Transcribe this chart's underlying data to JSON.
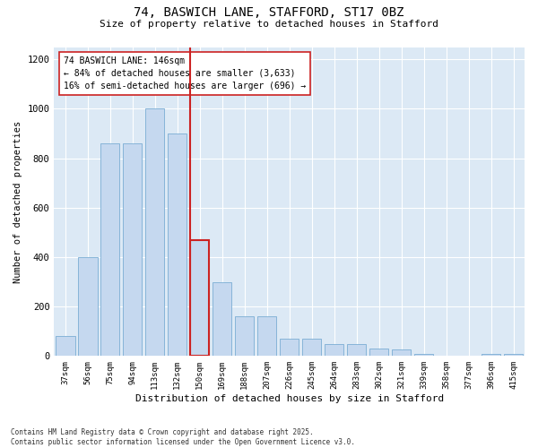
{
  "title_line1": "74, BASWICH LANE, STAFFORD, ST17 0BZ",
  "title_line2": "Size of property relative to detached houses in Stafford",
  "xlabel": "Distribution of detached houses by size in Stafford",
  "ylabel": "Number of detached properties",
  "categories": [
    "37sqm",
    "56sqm",
    "75sqm",
    "94sqm",
    "113sqm",
    "132sqm",
    "150sqm",
    "169sqm",
    "188sqm",
    "207sqm",
    "226sqm",
    "245sqm",
    "264sqm",
    "283sqm",
    "302sqm",
    "321sqm",
    "339sqm",
    "358sqm",
    "377sqm",
    "396sqm",
    "415sqm"
  ],
  "values": [
    80,
    400,
    860,
    860,
    1000,
    900,
    470,
    300,
    160,
    160,
    70,
    70,
    50,
    50,
    30,
    25,
    10,
    0,
    0,
    10,
    10
  ],
  "bar_color": "#c5d8ef",
  "bar_edge_color": "#7aadd4",
  "highlight_bar_index": 6,
  "highlight_color": "#cc2222",
  "annotation_text": "74 BASWICH LANE: 146sqm\n← 84% of detached houses are smaller (3,633)\n16% of semi-detached houses are larger (696) →",
  "annotation_box_color": "#ffffff",
  "annotation_box_edge": "#cc2222",
  "ylim": [
    0,
    1250
  ],
  "yticks": [
    0,
    200,
    400,
    600,
    800,
    1000,
    1200
  ],
  "background_color": "#dce9f5",
  "footer_text": "Contains HM Land Registry data © Crown copyright and database right 2025.\nContains public sector information licensed under the Open Government Licence v3.0.",
  "fig_width": 6.0,
  "fig_height": 5.0,
  "dpi": 100
}
